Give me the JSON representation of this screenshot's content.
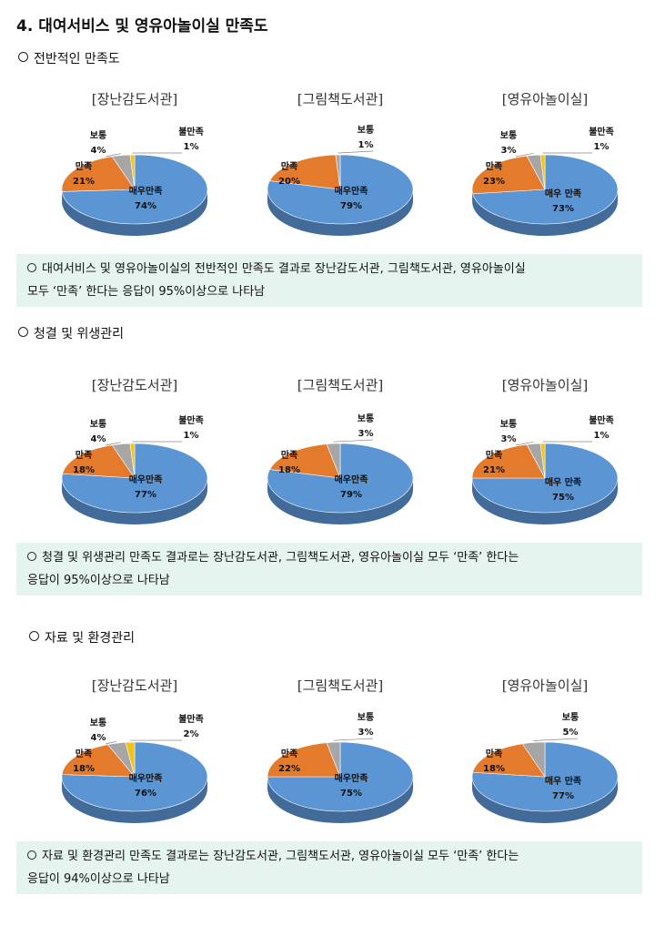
{
  "title": "4.  대여서비스 및 영유아놀이실 만족도",
  "colors": {
    "very_satisfied": "#5b95d4",
    "satisfied": "#e47a2c",
    "normal": "#a6a6a6",
    "dissatisfied": "#f2c318",
    "summary_bg": "#e5f4ef"
  },
  "sections": [
    {
      "heading": "전반적인 만족도",
      "summary": [
        "대여서비스 및 영유아놀이실의 전반적인 만족도 결과로 장난감도서관, 그림책도서관, 영유아놀이실",
        "모두 ‘만족’ 한다는 응답이 95%이상으로 나타남"
      ]
    },
    {
      "heading": "청결 및 위생관리",
      "summary": [
        "청결 및 위생관리 만족도 결과로는 장난감도서관, 그림책도서관, 영유아놀이실 모두 ‘만족’ 한다는",
        "응답이 95%이상으로 나타남"
      ]
    },
    {
      "heading": "자료 및 환경관리",
      "summary": [
        "자료 및 환경관리 만족도 결과로는 장난감도서관, 그림책도서관, 영유아놀이실 모두 ‘만족’ 한다는",
        "응답이 94%이상으로 나타남"
      ]
    }
  ],
  "chart_data": [
    {
      "type": "pie",
      "title": "[장난감도서관]",
      "categories": [
        "매우만족",
        "만족",
        "보통",
        "불만족"
      ],
      "values": [
        74,
        21,
        4,
        1
      ],
      "labels": [
        "74%",
        "21%",
        "4%",
        "1%"
      ]
    },
    {
      "type": "pie",
      "title": "[그림책도서관]",
      "categories": [
        "매우만족",
        "만족",
        "보통"
      ],
      "values": [
        79,
        20,
        1
      ],
      "labels": [
        "79%",
        "20%",
        "1%"
      ]
    },
    {
      "type": "pie",
      "title": "[영유아놀이실]",
      "categories": [
        "매우 만족",
        "만족",
        "보통",
        "불만족"
      ],
      "values": [
        73,
        23,
        3,
        1
      ],
      "labels": [
        "73%",
        "23%",
        "3%",
        "1%"
      ]
    },
    {
      "type": "pie",
      "title": "[장난감도서관]",
      "categories": [
        "매우만족",
        "만족",
        "보통",
        "불만족"
      ],
      "values": [
        77,
        18,
        4,
        1
      ],
      "labels": [
        "77%",
        "18%",
        "4%",
        "1%"
      ]
    },
    {
      "type": "pie",
      "title": "[그림책도서관]",
      "categories": [
        "매우만족",
        "만족",
        "보통"
      ],
      "values": [
        79,
        18,
        3
      ],
      "labels": [
        "79%",
        "18%",
        "3%"
      ]
    },
    {
      "type": "pie",
      "title": "[영유아놀이실]",
      "categories": [
        "매우 만족",
        "만족",
        "보통",
        "불만족"
      ],
      "values": [
        75,
        21,
        3,
        1
      ],
      "labels": [
        "75%",
        "21%",
        "3%",
        "1%"
      ]
    },
    {
      "type": "pie",
      "title": "[장난감도서관]",
      "categories": [
        "매우만족",
        "만족",
        "보통",
        "불만족"
      ],
      "values": [
        76,
        18,
        4,
        2
      ],
      "labels": [
        "76%",
        "18%",
        "4%",
        "2%"
      ]
    },
    {
      "type": "pie",
      "title": "[그림책도서관]",
      "categories": [
        "매우만족",
        "만족",
        "보통"
      ],
      "values": [
        75,
        22,
        3
      ],
      "labels": [
        "75%",
        "22%",
        "3%"
      ]
    },
    {
      "type": "pie",
      "title": "[영유아놀이실]",
      "categories": [
        "매우 만족",
        "만족",
        "보통"
      ],
      "values": [
        77,
        18,
        5
      ],
      "labels": [
        "77%",
        "18%",
        "5%"
      ]
    }
  ]
}
